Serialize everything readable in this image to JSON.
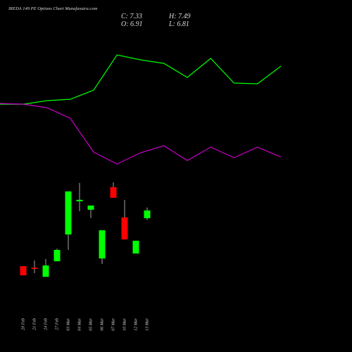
{
  "chart_data": [
    {
      "type": "candlestick",
      "title": "IREDA 149 PE Options Chart Munafasutra.com",
      "annotations": [
        "C: 7.33",
        "H: 7.49",
        "O: 6.91",
        "L: 6.81"
      ],
      "categories": [
        "20 Feb",
        "21 Feb",
        "24 Feb",
        "27 Feb",
        "03 Mar",
        "04 Mar",
        "05 Mar",
        "06 Mar",
        "07 Mar",
        "10 Mar",
        "12 Mar",
        "13 Mar"
      ],
      "open": [
        4.29,
        4.21,
        3.71,
        4.56,
        6.02,
        7.83,
        7.37,
        4.71,
        8.6,
        6.95,
        4.98,
        6.91
      ],
      "high": [
        4.29,
        4.6,
        4.68,
        5.25,
        8.37,
        8.83,
        7.6,
        6.25,
        8.87,
        7.91,
        5.68,
        7.49
      ],
      "low": [
        3.79,
        3.91,
        3.71,
        4.56,
        5.18,
        7.29,
        6.91,
        4.41,
        8.02,
        5.75,
        4.98,
        6.81
      ],
      "close": [
        3.79,
        4.14,
        4.33,
        5.18,
        8.37,
        7.91,
        7.6,
        6.25,
        8.02,
        5.75,
        5.68,
        7.33
      ],
      "ylim": [
        3.45,
        9.21
      ],
      "up_color": "#00ff00",
      "down_color": "#ff0000",
      "wick_color": "#cccccc"
    },
    {
      "type": "line",
      "categories": [
        null,
        null,
        null,
        null,
        null,
        null,
        null,
        null,
        null,
        null,
        null,
        null,
        null
      ],
      "series": [
        {
          "color": "#00ff00",
          "values": [
            51,
            51,
            53.5,
            54.5,
            61,
            86,
            82.5,
            80,
            70,
            83.5,
            66,
            65.5,
            78
          ]
        },
        {
          "color": "#cc00cc",
          "values": [
            51.5,
            51,
            48.5,
            41,
            17,
            8.5,
            16.5,
            21.5,
            11,
            20.5,
            13,
            20.5,
            13.5
          ]
        }
      ],
      "ylim": [
        0,
        100
      ]
    }
  ]
}
